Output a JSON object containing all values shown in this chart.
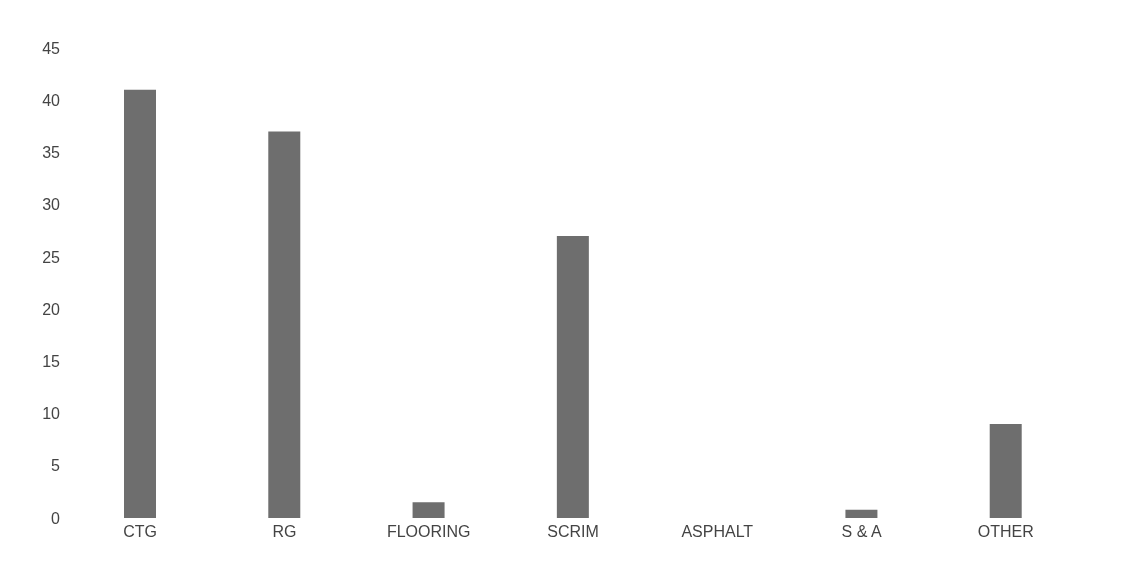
{
  "chart_data": {
    "type": "bar",
    "categories": [
      "CTG",
      "RG",
      "FLOORING",
      "SCRIM",
      "ASPHALT",
      "S & A",
      "OTHER"
    ],
    "values": [
      41,
      37,
      1.5,
      27,
      0,
      0.8,
      9
    ],
    "color": "#6e6e6e",
    "ylim": [
      0,
      45
    ],
    "yticks": [
      0,
      5,
      10,
      15,
      20,
      25,
      30,
      35,
      40,
      45
    ],
    "grid": false
  }
}
